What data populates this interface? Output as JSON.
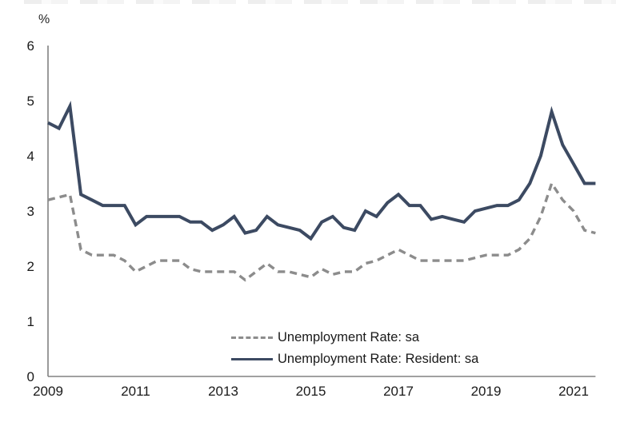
{
  "page": {
    "unit_label": "%"
  },
  "legend": {
    "items": [
      {
        "label": "Unemployment Rate: sa",
        "style": "dashed",
        "color": "#8C8C8C"
      },
      {
        "label": "Unemployment Rate: Resident: sa",
        "style": "solid",
        "color": "#3C4A62"
      }
    ]
  },
  "colors": {
    "axis": "#808080",
    "text": "#1a1a1a",
    "series_overall": "#8C8C8C",
    "series_resident": "#3C4A62"
  },
  "chart_data": {
    "type": "line",
    "title": "",
    "ylabel": "%",
    "xlabel": "",
    "grid": false,
    "legend_position": "inside-bottom-center",
    "ylim": [
      0,
      6
    ],
    "y_ticks": [
      0,
      1,
      2,
      3,
      4,
      5,
      6
    ],
    "x_tick_years": [
      2009,
      2011,
      2013,
      2015,
      2017,
      2019,
      2021
    ],
    "x_frequency": "quarterly",
    "x_start": "2009 Q1",
    "x_end": "2021 Q3",
    "series": [
      {
        "name": "Unemployment Rate: sa",
        "style": "dashed",
        "color": "#8C8C8C",
        "values": [
          3.2,
          3.25,
          3.3,
          2.3,
          2.2,
          2.2,
          2.2,
          2.1,
          1.9,
          2.0,
          2.1,
          2.1,
          2.1,
          1.95,
          1.9,
          1.9,
          1.9,
          1.9,
          1.75,
          1.9,
          2.05,
          1.9,
          1.9,
          1.85,
          1.8,
          1.95,
          1.85,
          1.9,
          1.9,
          2.05,
          2.1,
          2.2,
          2.3,
          2.2,
          2.1,
          2.1,
          2.1,
          2.1,
          2.1,
          2.15,
          2.2,
          2.2,
          2.2,
          2.3,
          2.5,
          2.9,
          3.5,
          3.2,
          3.0,
          2.65,
          2.6
        ]
      },
      {
        "name": "Unemployment Rate: Resident: sa",
        "style": "solid",
        "color": "#3C4A62",
        "values": [
          4.6,
          4.5,
          4.9,
          3.3,
          3.2,
          3.1,
          3.1,
          3.1,
          2.75,
          2.9,
          2.9,
          2.9,
          2.9,
          2.8,
          2.8,
          2.65,
          2.75,
          2.9,
          2.6,
          2.65,
          2.9,
          2.75,
          2.7,
          2.65,
          2.5,
          2.8,
          2.9,
          2.7,
          2.65,
          3.0,
          2.9,
          3.15,
          3.3,
          3.1,
          3.1,
          2.85,
          2.9,
          2.85,
          2.8,
          3.0,
          3.05,
          3.1,
          3.1,
          3.2,
          3.5,
          4.0,
          4.8,
          4.2,
          3.85,
          3.5,
          3.5
        ]
      }
    ]
  }
}
